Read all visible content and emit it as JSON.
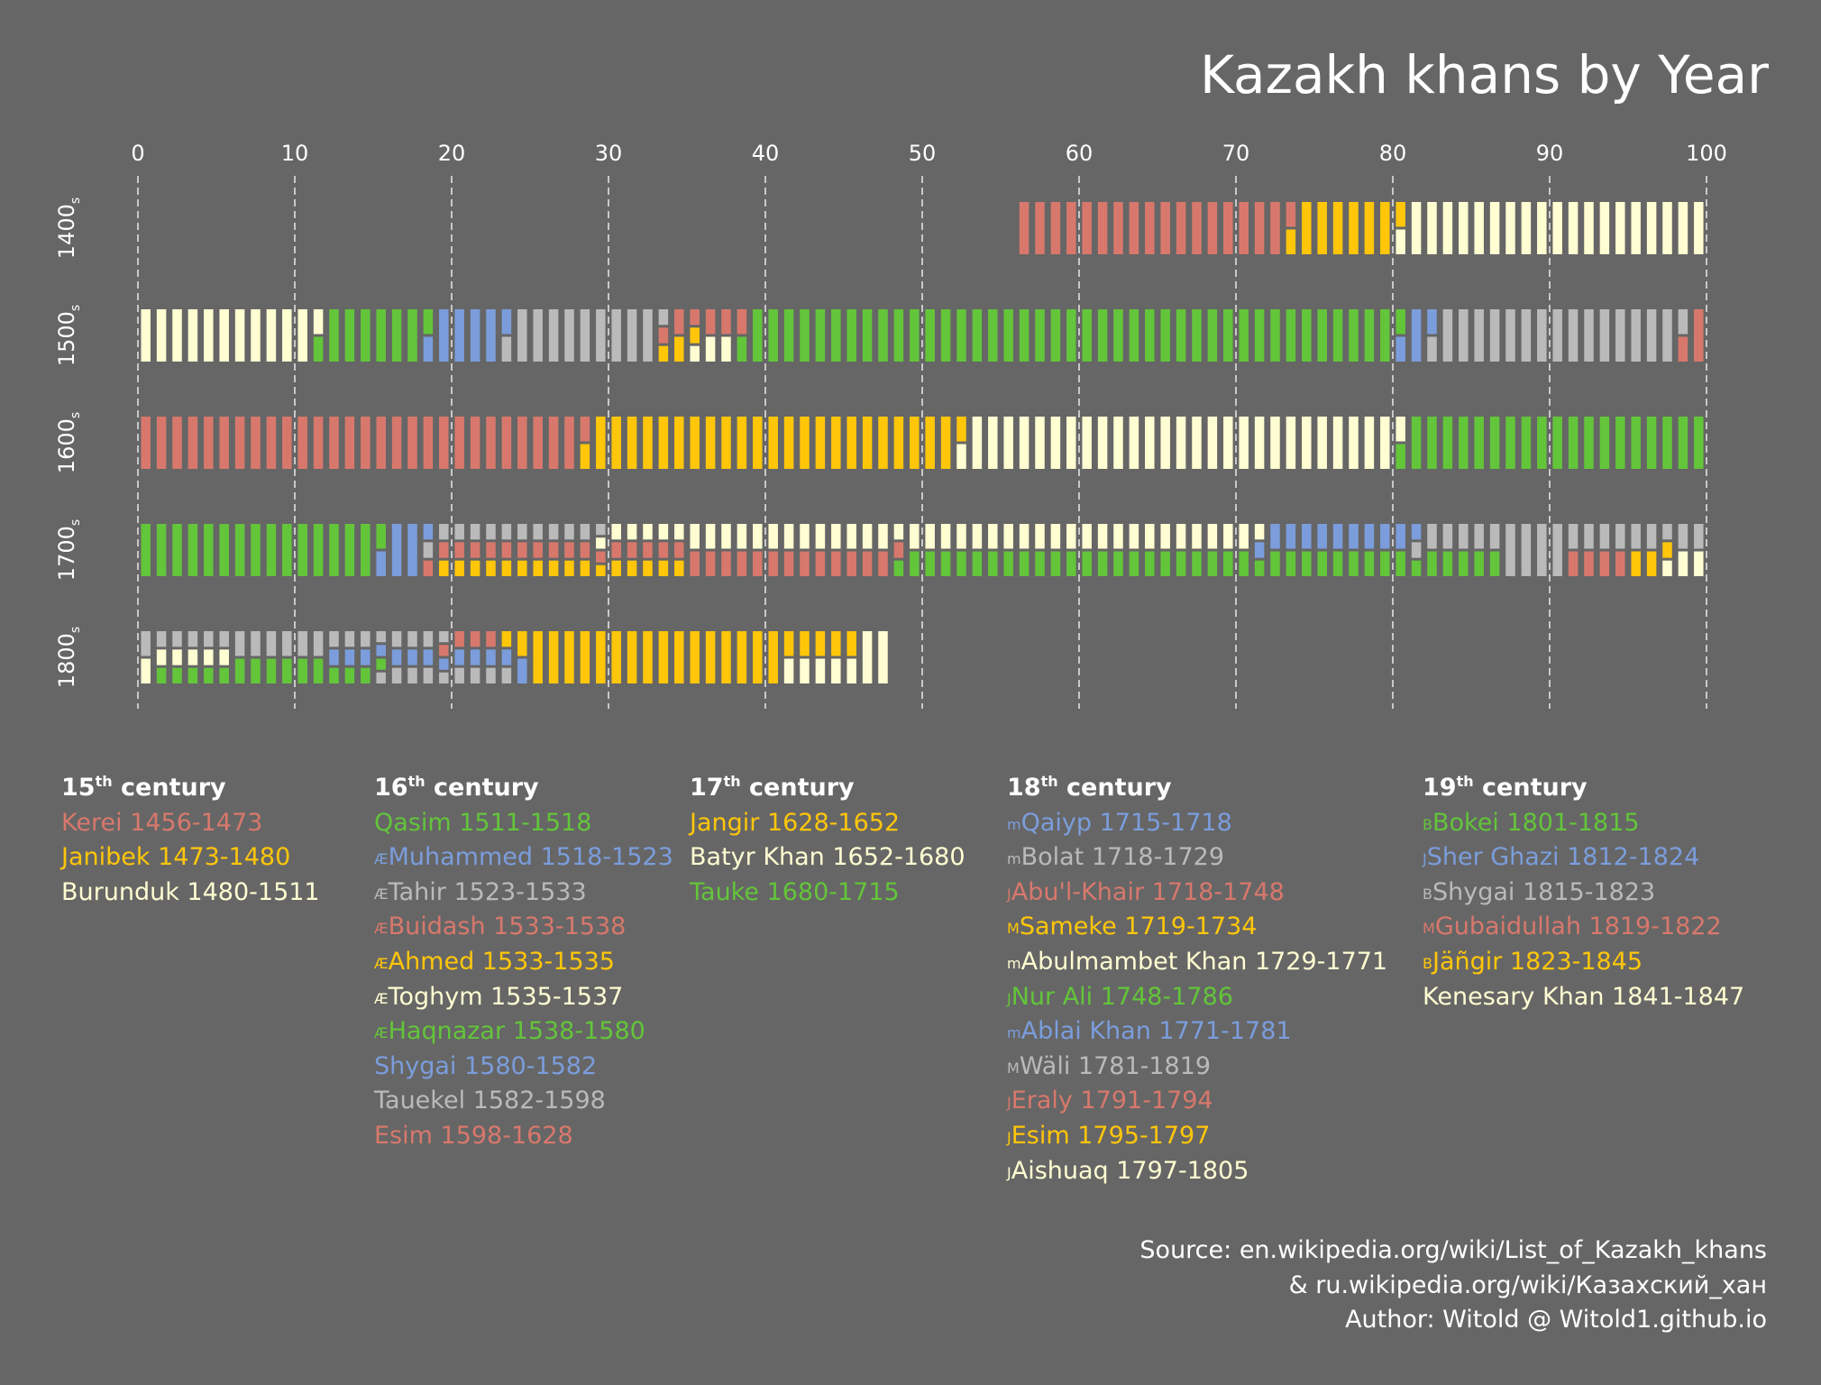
{
  "colors": {
    "background": "#666666",
    "red": "#d8786c",
    "yellow": "#ffc60a",
    "cream": "#fffdd2",
    "green": "#63c53a",
    "blue": "#7b9ddc",
    "gray": "#bababa"
  },
  "chart_data": {
    "type": "heatmap",
    "title": "Kazakh khans by Year",
    "x_ticks": [
      "0",
      "10",
      "20",
      "30",
      "40",
      "50",
      "60",
      "70",
      "80",
      "90",
      "100"
    ],
    "xlim": [
      0,
      100
    ],
    "grid": "vertical dashed",
    "rows": [
      {
        "label": "1400",
        "label_sub": "s",
        "century_start": 1400,
        "reigns": [
          {
            "name": "Kerei",
            "start": 1456,
            "end": 1473,
            "color": "red",
            "slot": 0
          },
          {
            "name": "Janibek",
            "start": 1473,
            "end": 1480,
            "color": "yellow",
            "slot": 0
          },
          {
            "name": "Burunduk",
            "start": 1480,
            "end": 1511,
            "color": "cream",
            "slot": 0
          }
        ]
      },
      {
        "label": "1500",
        "label_sub": "s",
        "century_start": 1500,
        "reigns": [
          {
            "name": "Burunduk",
            "start": 1480,
            "end": 1511,
            "color": "cream",
            "slot": 0
          },
          {
            "name": "Qasim",
            "start": 1511,
            "end": 1518,
            "color": "green",
            "slot": 0
          },
          {
            "name": "Muhammed",
            "start": 1518,
            "end": 1523,
            "color": "blue",
            "slot": 0
          },
          {
            "name": "Tahir",
            "start": 1523,
            "end": 1533,
            "color": "gray",
            "slot": 0
          },
          {
            "name": "Buidash",
            "start": 1533,
            "end": 1538,
            "color": "red",
            "slot": 0
          },
          {
            "name": "Ahmed",
            "start": 1533,
            "end": 1535,
            "color": "yellow",
            "slot": 1
          },
          {
            "name": "Toghym",
            "start": 1535,
            "end": 1537,
            "color": "cream",
            "slot": 1
          },
          {
            "name": "Haqnazar",
            "start": 1538,
            "end": 1580,
            "color": "green",
            "slot": 0
          },
          {
            "name": "Shygai",
            "start": 1580,
            "end": 1582,
            "color": "blue",
            "slot": 0
          },
          {
            "name": "Tauekel",
            "start": 1582,
            "end": 1598,
            "color": "gray",
            "slot": 0
          },
          {
            "name": "Esim",
            "start": 1598,
            "end": 1628,
            "color": "red",
            "slot": 0
          }
        ]
      },
      {
        "label": "1600",
        "label_sub": "s",
        "century_start": 1600,
        "reigns": [
          {
            "name": "Esim",
            "start": 1598,
            "end": 1628,
            "color": "red",
            "slot": 0
          },
          {
            "name": "Jangir",
            "start": 1628,
            "end": 1652,
            "color": "yellow",
            "slot": 0
          },
          {
            "name": "Batyr Khan",
            "start": 1652,
            "end": 1680,
            "color": "cream",
            "slot": 0
          },
          {
            "name": "Tauke",
            "start": 1680,
            "end": 1715,
            "color": "green",
            "slot": 0
          }
        ]
      },
      {
        "label": "1700",
        "label_sub": "s",
        "century_start": 1700,
        "reigns": [
          {
            "name": "Tauke",
            "start": 1680,
            "end": 1715,
            "color": "green",
            "slot": 0
          },
          {
            "name": "Qaiyp",
            "start": 1715,
            "end": 1718,
            "color": "blue",
            "slot": 0
          },
          {
            "name": "Bolat",
            "start": 1718,
            "end": 1729,
            "color": "gray",
            "slot": 0
          },
          {
            "name": "Abu'l-Khair",
            "start": 1718,
            "end": 1748,
            "color": "red",
            "slot": 1
          },
          {
            "name": "Sameke",
            "start": 1719,
            "end": 1734,
            "color": "yellow",
            "slot": 2
          },
          {
            "name": "Abulmambet Khan",
            "start": 1729,
            "end": 1771,
            "color": "cream",
            "slot": 0
          },
          {
            "name": "Nur Ali",
            "start": 1748,
            "end": 1786,
            "color": "green",
            "slot": 1
          },
          {
            "name": "Ablai Khan",
            "start": 1771,
            "end": 1781,
            "color": "blue",
            "slot": 0
          },
          {
            "name": "Wäli",
            "start": 1781,
            "end": 1819,
            "color": "gray",
            "slot": 0
          },
          {
            "name": "Eraly",
            "start": 1791,
            "end": 1794,
            "color": "red",
            "slot": 1
          },
          {
            "name": "Esim",
            "start": 1795,
            "end": 1797,
            "color": "yellow",
            "slot": 1
          },
          {
            "name": "Aishuaq",
            "start": 1797,
            "end": 1805,
            "color": "cream",
            "slot": 1
          }
        ]
      },
      {
        "label": "1800",
        "label_sub": "s",
        "century_start": 1800,
        "reigns": [
          {
            "name": "Wäli",
            "start": 1781,
            "end": 1819,
            "color": "gray",
            "slot": 0
          },
          {
            "name": "Aishuaq",
            "start": 1797,
            "end": 1805,
            "color": "cream",
            "slot": 1
          },
          {
            "name": "Bokei",
            "start": 1801,
            "end": 1815,
            "color": "green",
            "slot": 2
          },
          {
            "name": "Sher Ghazi",
            "start": 1812,
            "end": 1824,
            "color": "blue",
            "slot": 1
          },
          {
            "name": "Shygai",
            "start": 1815,
            "end": 1823,
            "color": "gray",
            "slot": 2
          },
          {
            "name": "Gubaidullah",
            "start": 1819,
            "end": 1822,
            "color": "red",
            "slot": 0
          },
          {
            "name": "Jäñgir",
            "start": 1823,
            "end": 1845,
            "color": "yellow",
            "slot": 0
          },
          {
            "name": "Kenesary Khan",
            "start": 1841,
            "end": 1847,
            "color": "cream",
            "slot": 1
          }
        ]
      }
    ]
  },
  "legend": {
    "columns": [
      {
        "heading_num": "15",
        "heading_sup": "th",
        "heading_rest": " century",
        "items": [
          {
            "prefix": "",
            "text": "Kerei 1456-1473",
            "color": "red"
          },
          {
            "prefix": "",
            "text": "Janibek 1473-1480",
            "color": "yellow"
          },
          {
            "prefix": "",
            "text": "Burunduk 1480-1511",
            "color": "cream"
          }
        ]
      },
      {
        "heading_num": "16",
        "heading_sup": "th",
        "heading_rest": " century",
        "items": [
          {
            "prefix": "",
            "text": "Qasim 1511-1518",
            "color": "green"
          },
          {
            "prefix": "Æ",
            "text": "Muhammed 1518-1523",
            "color": "blue"
          },
          {
            "prefix": "Æ",
            "text": "Tahir 1523-1533",
            "color": "gray"
          },
          {
            "prefix": "Æ",
            "text": "Buidash 1533-1538",
            "color": "red"
          },
          {
            "prefix": "Æ",
            "text": "Ahmed 1533-1535",
            "color": "yellow"
          },
          {
            "prefix": "Æ",
            "text": "Toghym 1535-1537",
            "color": "cream"
          },
          {
            "prefix": "Æ",
            "text": "Haqnazar 1538-1580",
            "color": "green"
          },
          {
            "prefix": "",
            "text": "Shygai 1580-1582",
            "color": "blue"
          },
          {
            "prefix": "",
            "text": "Tauekel 1582-1598",
            "color": "gray"
          },
          {
            "prefix": "",
            "text": "Esim 1598-1628",
            "color": "red"
          }
        ]
      },
      {
        "heading_num": "17",
        "heading_sup": "th",
        "heading_rest": " century",
        "items": [
          {
            "prefix": "",
            "text": "Jangir 1628-1652",
            "color": "yellow"
          },
          {
            "prefix": "",
            "text": "Batyr Khan 1652-1680",
            "color": "cream"
          },
          {
            "prefix": "",
            "text": "Tauke 1680-1715",
            "color": "green"
          }
        ]
      },
      {
        "heading_num": "18",
        "heading_sup": "th",
        "heading_rest": " century",
        "items": [
          {
            "prefix": "m",
            "text": "Qaiyp 1715-1718",
            "color": "blue"
          },
          {
            "prefix": "m",
            "text": "Bolat 1718-1729",
            "color": "gray"
          },
          {
            "prefix": "J",
            "text": "Abu'l-Khair 1718-1748",
            "color": "red"
          },
          {
            "prefix": "M",
            "text": "Sameke 1719-1734",
            "color": "yellow"
          },
          {
            "prefix": "m",
            "text": "Abulmambet Khan 1729-1771",
            "color": "cream"
          },
          {
            "prefix": "J",
            "text": "Nur Ali 1748-1786",
            "color": "green"
          },
          {
            "prefix": "m",
            "text": "Ablai Khan 1771-1781",
            "color": "blue"
          },
          {
            "prefix": "M",
            "text": "Wäli 1781-1819",
            "color": "gray"
          },
          {
            "prefix": "J",
            "text": "Eraly 1791-1794",
            "color": "red"
          },
          {
            "prefix": "J",
            "text": "Esim 1795-1797",
            "color": "yellow"
          },
          {
            "prefix": "J",
            "text": "Aishuaq 1797-1805",
            "color": "cream"
          }
        ]
      },
      {
        "heading_num": "19",
        "heading_sup": "th",
        "heading_rest": " century",
        "items": [
          {
            "prefix": "B",
            "text": "Bokei 1801-1815",
            "color": "green"
          },
          {
            "prefix": "J",
            "text": "Sher Ghazi 1812-1824",
            "color": "blue"
          },
          {
            "prefix": "B",
            "text": "Shygai 1815-1823",
            "color": "gray"
          },
          {
            "prefix": "M",
            "text": "Gubaidullah 1819-1822",
            "color": "red"
          },
          {
            "prefix": "B",
            "text": "Jäñgir 1823-1845",
            "color": "yellow"
          },
          {
            "prefix": "",
            "text": "Kenesary Khan 1841-1847",
            "color": "cream"
          }
        ]
      }
    ]
  },
  "footer": {
    "line1": "Source: en.wikipedia.org/wiki/List_of_Kazakh_khans",
    "line2": "& ru.wikipedia.org/wiki/Казахский_хан",
    "line3": "Author: Witold @ Witold1.github.io"
  }
}
